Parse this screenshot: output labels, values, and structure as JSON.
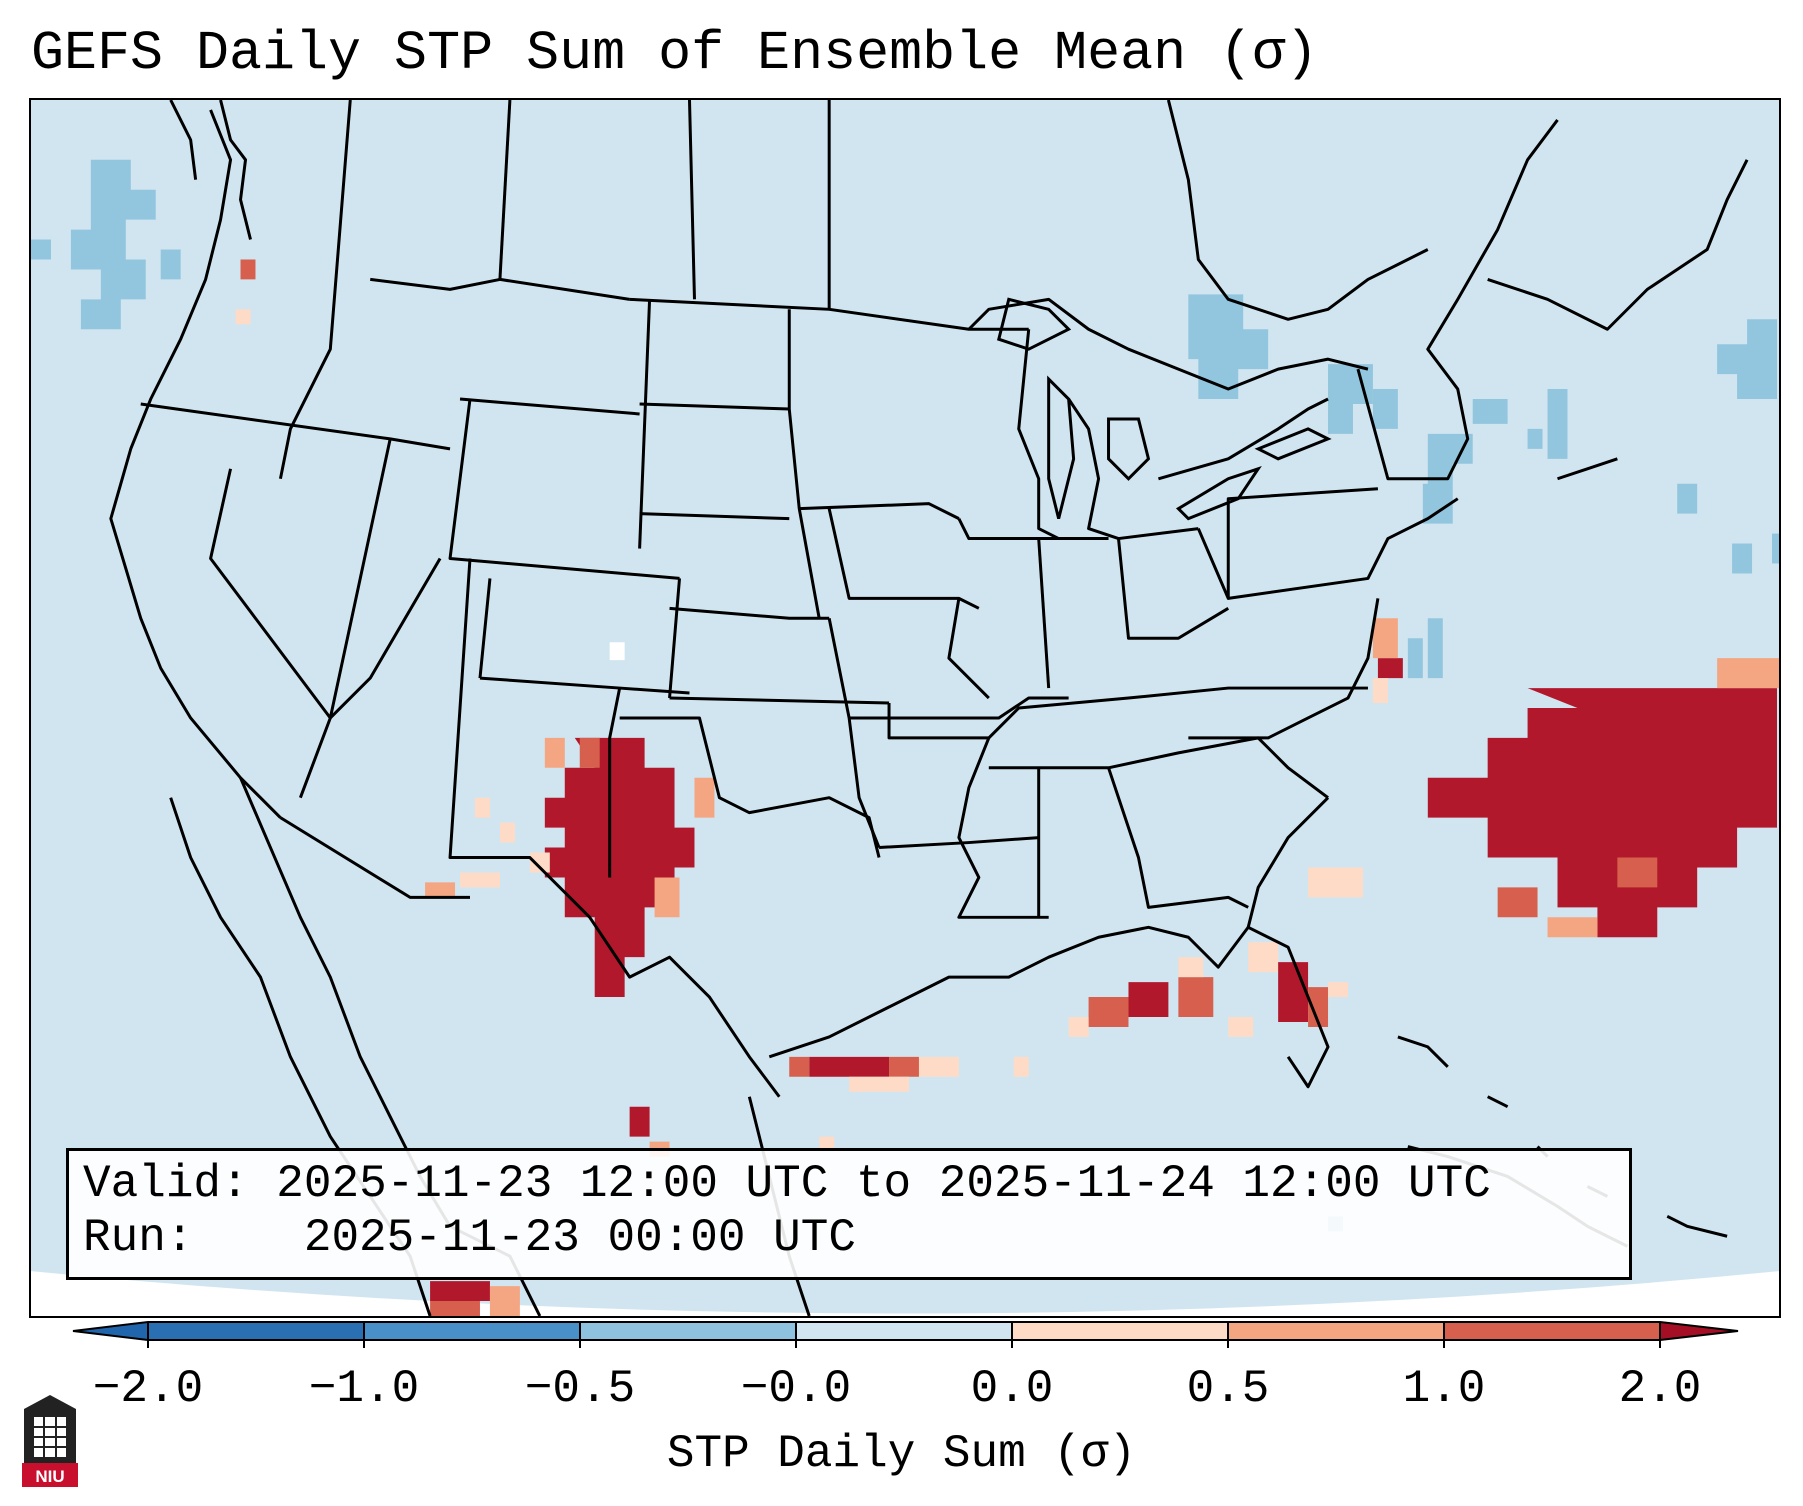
{
  "title": "GEFS Daily STP Sum of Ensemble Mean (σ)",
  "info": {
    "valid_label": "Valid:",
    "valid_value": "2025-11-23 12:00 UTC to 2025-11-24 12:00 UTC",
    "run_label": "Run:",
    "run_value": "2025-11-23 00:00 UTC"
  },
  "colorbar": {
    "title": "STP Daily Sum (σ)",
    "ticks": [
      "−2.0",
      "−1.0",
      "−0.5",
      "−0.0",
      "0.0",
      "0.5",
      "1.0",
      "2.0"
    ],
    "colors": [
      "#2b6fb3",
      "#4a90c8",
      "#8fc2de",
      "#d1e5f0",
      "#fddbc7",
      "#f4a582",
      "#d6604d",
      "#b2182b"
    ],
    "extend_low": "#2166ac",
    "extend_high": "#a50f26"
  },
  "map": {
    "background_color": "#d1e5f0",
    "projection": "Lambert Conformal",
    "region": "Contiguous United States"
  },
  "logo": {
    "text": "NIU",
    "description": "Northern Illinois University"
  }
}
